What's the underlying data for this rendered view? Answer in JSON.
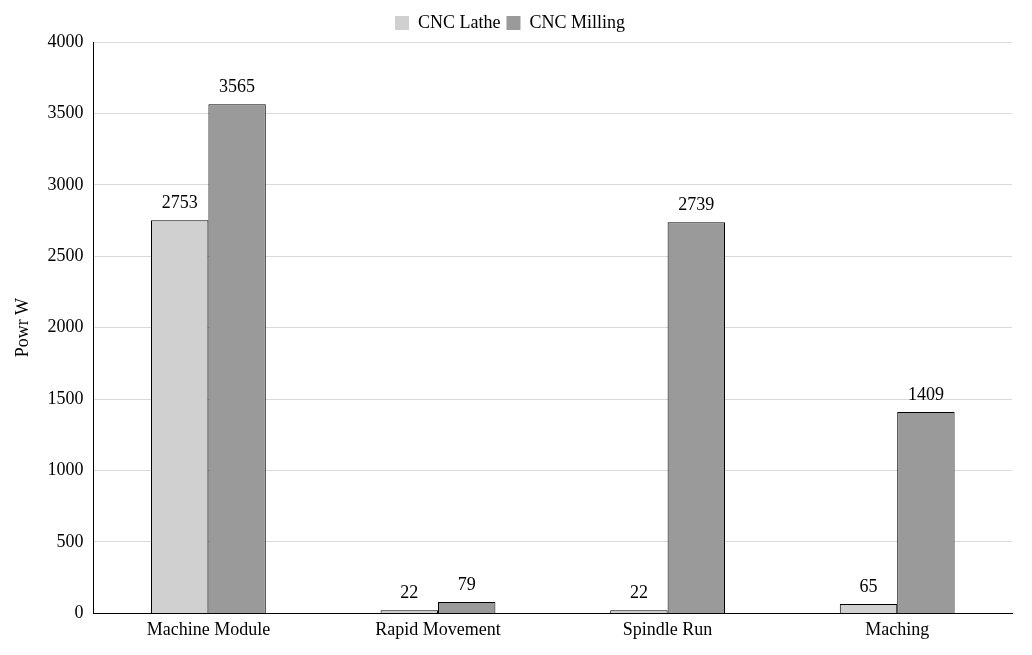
{
  "chart_data": {
    "type": "bar",
    "ylabel": "Powr W",
    "categories": [
      "Machine Module",
      "Rapid Movement",
      "Spindle Run",
      "Maching"
    ],
    "series": [
      {
        "name": "CNC Lathe",
        "color": "#d0d0d0",
        "values": [
          2753,
          22,
          22,
          65
        ]
      },
      {
        "name": "CNC Milling",
        "color": "#9a9a9a",
        "values": [
          3565,
          79,
          2739,
          1409
        ]
      }
    ],
    "ylim": [
      0,
      4000
    ],
    "yticks": [
      0,
      500,
      1000,
      1500,
      2000,
      2500,
      3000,
      3500,
      4000
    ],
    "grid": "y",
    "legend": "top",
    "data_labels": true
  }
}
